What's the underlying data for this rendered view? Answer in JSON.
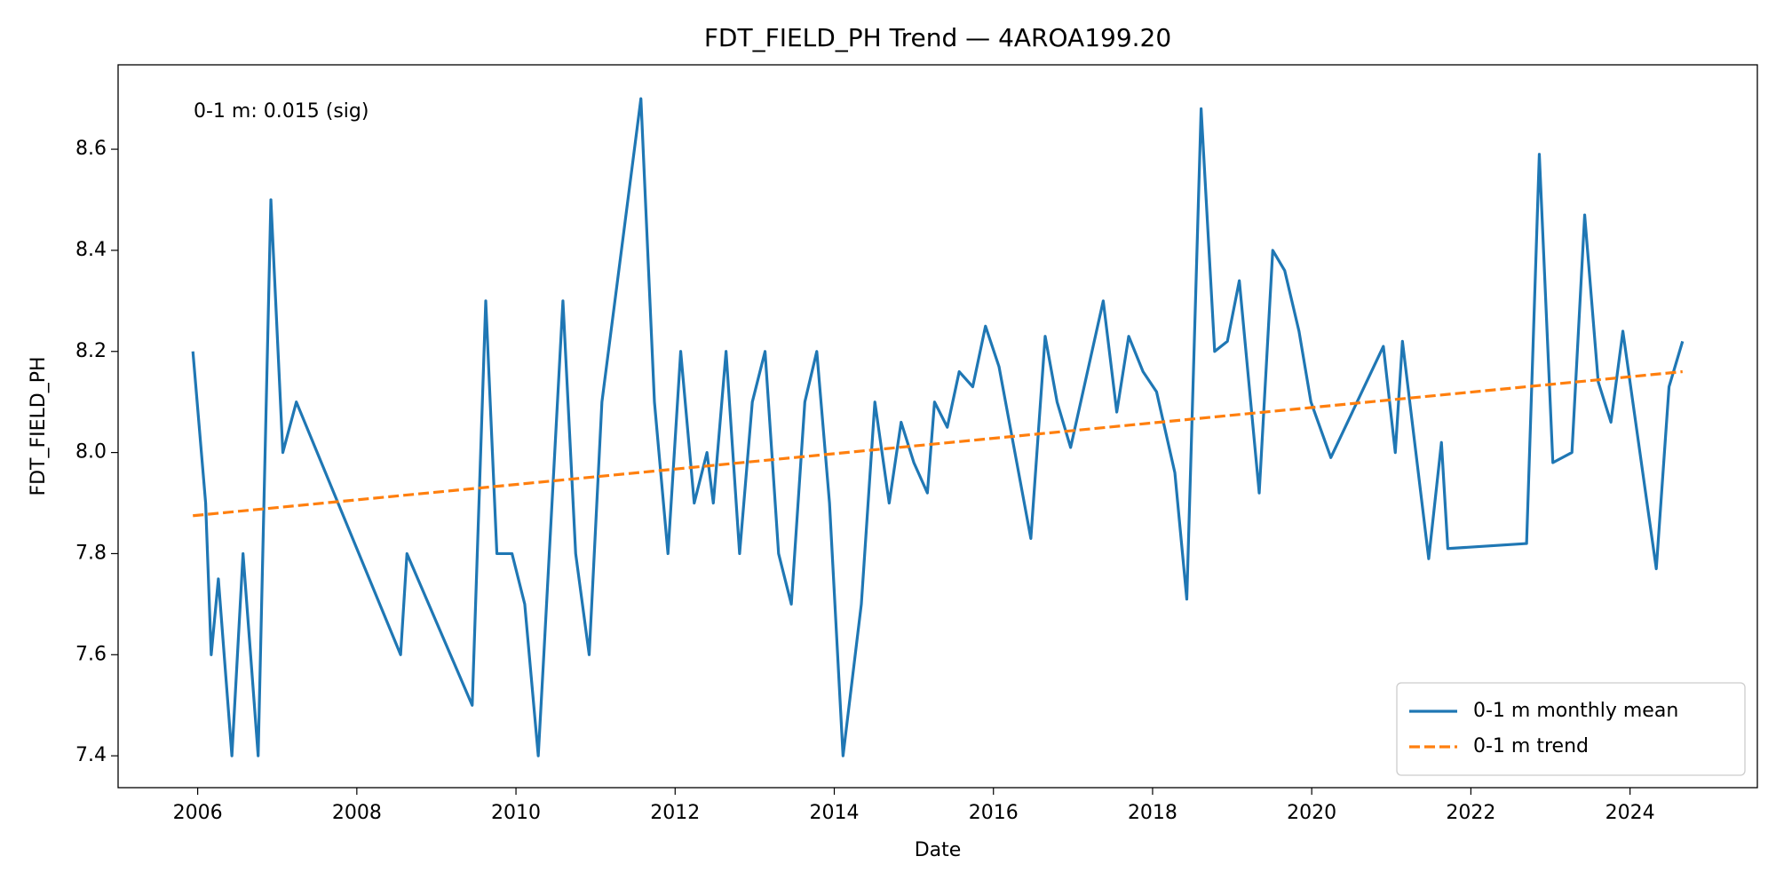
{
  "chart_data": {
    "type": "line",
    "title": "FDT_FIELD_PH Trend — 4AROA199.20",
    "x_label": "Date",
    "y_label": "FDT_FIELD_PH",
    "annotation": "0-1 m: 0.015 (sig)",
    "legend": "lower right",
    "grid": false,
    "xlim": [
      2005.0,
      2025.6
    ],
    "ylim": [
      7.337,
      8.767
    ],
    "xticks": [
      2006,
      2008,
      2010,
      2012,
      2014,
      2016,
      2018,
      2020,
      2022,
      2024
    ],
    "yticks": [
      7.4,
      7.6,
      7.8,
      {
        "value": 8,
        "label": "8.0"
      },
      8.2,
      8.4,
      8.6
    ],
    "series": [
      {
        "name": "0-1 m monthly mean",
        "color": "#1f77b4",
        "linestyle": "solid",
        "x": [
          2005.94,
          2006.1,
          2006.17,
          2006.26,
          2006.43,
          2006.57,
          2006.76,
          2006.92,
          2007.07,
          2007.24,
          2008.55,
          2008.63,
          2009.45,
          2009.62,
          2009.76,
          2009.95,
          2010.11,
          2010.28,
          2010.35,
          2010.59,
          2010.75,
          2010.92,
          2011.08,
          2011.57,
          2011.74,
          2011.91,
          2012.07,
          2012.24,
          2012.4,
          2012.48,
          2012.64,
          2012.81,
          2012.97,
          2013.13,
          2013.3,
          2013.46,
          2013.63,
          2013.78,
          2013.94,
          2014.11,
          2014.34,
          2014.51,
          2014.69,
          2014.84,
          2015.0,
          2015.17,
          2015.26,
          2015.42,
          2015.57,
          2015.74,
          2015.9,
          2016.07,
          2016.47,
          2016.65,
          2016.8,
          2016.97,
          2017.38,
          2017.55,
          2017.7,
          2017.88,
          2018.05,
          2018.28,
          2018.43,
          2018.61,
          2018.78,
          2018.94,
          2019.09,
          2019.34,
          2019.51,
          2019.66,
          2019.84,
          2019.99,
          2020.24,
          2020.9,
          2021.05,
          2021.14,
          2021.47,
          2021.63,
          2021.71,
          2022.7,
          2022.86,
          2023.03,
          2023.27,
          2023.43,
          2023.6,
          2023.76,
          2023.91,
          2024.33,
          2024.49,
          2024.66
        ],
        "values": [
          8.2,
          7.9,
          7.6,
          7.75,
          7.4,
          7.8,
          7.4,
          8.5,
          8.0,
          8.1,
          7.6,
          7.8,
          7.5,
          8.3,
          7.8,
          7.8,
          7.7,
          7.4,
          7.6,
          8.3,
          7.8,
          7.6,
          8.1,
          8.7,
          8.1,
          7.8,
          8.2,
          7.9,
          8.0,
          7.9,
          8.2,
          7.8,
          8.1,
          8.2,
          7.8,
          7.7,
          8.1,
          8.2,
          7.9,
          7.4,
          7.7,
          8.1,
          7.9,
          8.06,
          7.98,
          7.92,
          8.1,
          8.05,
          8.16,
          8.13,
          8.25,
          8.17,
          7.83,
          8.23,
          8.1,
          8.01,
          8.3,
          8.08,
          8.23,
          8.16,
          8.12,
          7.96,
          7.71,
          8.68,
          8.2,
          8.22,
          8.34,
          7.92,
          8.4,
          8.36,
          8.24,
          8.1,
          7.99,
          8.21,
          8.0,
          8.22,
          7.79,
          8.02,
          7.81,
          7.82,
          8.59,
          7.98,
          8.0,
          8.47,
          8.14,
          8.06,
          8.24,
          7.77,
          8.13,
          8.22
        ]
      },
      {
        "name": "0-1 m trend",
        "color": "#ff7f0e",
        "linestyle": "dashed",
        "x": [
          2005.94,
          2024.66
        ],
        "values": [
          7.875,
          8.16
        ]
      }
    ]
  }
}
